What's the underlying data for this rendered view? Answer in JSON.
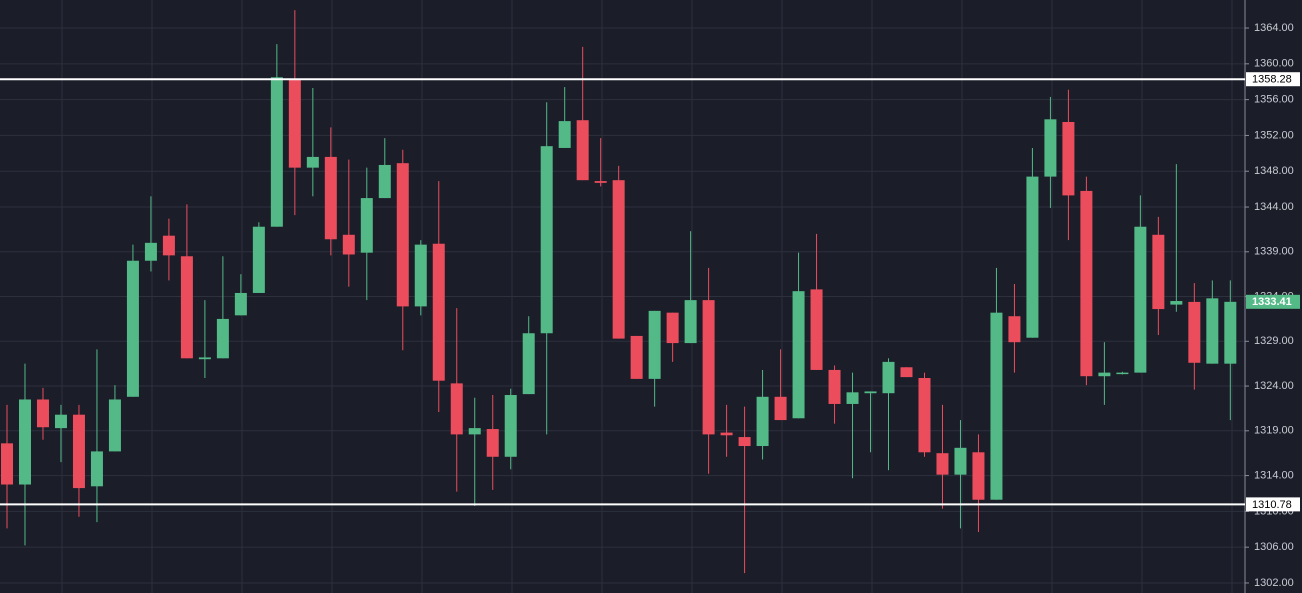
{
  "chart_data": {
    "type": "candlestick",
    "open": [
      1317.6,
      1313.0,
      1322.5,
      1319.3,
      1320.8,
      1312.8,
      1316.7,
      1322.8,
      1338.0,
      1340.8,
      1338.5,
      1327.0,
      1327.1,
      1331.9,
      1334.4,
      1341.8,
      1358.3,
      1348.4,
      1349.6,
      1340.9,
      1338.9,
      1345.0,
      1348.9,
      1332.9,
      1339.9,
      1324.3,
      1318.6,
      1319.2,
      1316.1,
      1323.1,
      1329.9,
      1350.6,
      1353.7,
      1346.9,
      1347.0,
      1329.6,
      1324.8,
      1332.2,
      1328.8,
      1333.6,
      1318.8,
      1318.3,
      1317.3,
      1322.8,
      1320.4,
      1334.8,
      1325.8,
      1322.0,
      1323.2,
      1323.2,
      1326.1,
      1324.9,
      1316.5,
      1314.1,
      1316.6,
      1311.3,
      1331.8,
      1329.4,
      1347.4,
      1353.5,
      1345.8,
      1325.1,
      1325.4,
      1325.5,
      1340.9,
      1333.1,
      1333.4,
      1326.5,
      1326.5
    ],
    "high": [
      1321.9,
      1326.5,
      1323.8,
      1321.9,
      1321.9,
      1328.1,
      1324.1,
      1339.8,
      1345.2,
      1342.7,
      1344.3,
      1333.6,
      1338.5,
      1336.5,
      1342.3,
      1362.2,
      1366.0,
      1357.3,
      1352.9,
      1349.3,
      1348.4,
      1351.7,
      1350.4,
      1340.3,
      1346.9,
      1332.7,
      1322.7,
      1323.0,
      1323.7,
      1331.8,
      1355.7,
      1357.4,
      1361.9,
      1351.7,
      1348.6,
      1329.6,
      1332.4,
      1332.2,
      1341.3,
      1337.2,
      1321.9,
      1321.7,
      1325.8,
      1328.1,
      1338.9,
      1341.0,
      1326.3,
      1325.5,
      1323.4,
      1327.1,
      1326.1,
      1325.5,
      1321.9,
      1320.2,
      1318.6,
      1337.2,
      1335.4,
      1350.6,
      1356.3,
      1357.1,
      1347.4,
      1328.9,
      1325.6,
      1345.3,
      1342.9,
      1348.8,
      1335.5,
      1335.8,
      1335.8
    ],
    "low": [
      1308.1,
      1306.2,
      1318.0,
      1315.5,
      1309.4,
      1308.8,
      1316.7,
      1322.8,
      1336.8,
      1335.8,
      1327.1,
      1324.9,
      1327.1,
      1331.9,
      1334.4,
      1341.8,
      1343.1,
      1345.2,
      1338.6,
      1335.1,
      1333.6,
      1345.0,
      1328.0,
      1331.9,
      1321.1,
      1312.2,
      1310.6,
      1312.4,
      1314.7,
      1323.1,
      1318.6,
      1350.6,
      1347.0,
      1346.3,
      1329.3,
      1324.8,
      1321.7,
      1326.7,
      1328.8,
      1314.2,
      1316.1,
      1303.1,
      1315.8,
      1320.2,
      1320.4,
      1325.8,
      1319.8,
      1313.7,
      1316.6,
      1314.6,
      1325.0,
      1316.1,
      1310.3,
      1308.1,
      1307.7,
      1311.3,
      1325.5,
      1329.4,
      1343.9,
      1340.3,
      1324.1,
      1321.9,
      1325.3,
      1325.5,
      1329.7,
      1332.3,
      1323.6,
      1326.5,
      1320.2
    ],
    "close": [
      1313.0,
      1322.5,
      1319.4,
      1320.8,
      1312.6,
      1316.7,
      1322.5,
      1338.0,
      1340.0,
      1338.6,
      1327.1,
      1327.2,
      1331.5,
      1334.4,
      1341.8,
      1358.5,
      1348.4,
      1349.6,
      1340.4,
      1338.7,
      1345.0,
      1348.7,
      1332.9,
      1339.8,
      1324.6,
      1318.6,
      1319.3,
      1316.1,
      1323.0,
      1329.9,
      1350.8,
      1353.6,
      1347.0,
      1346.7,
      1329.3,
      1324.8,
      1332.4,
      1328.8,
      1333.6,
      1318.6,
      1318.5,
      1317.3,
      1322.8,
      1320.2,
      1334.6,
      1325.8,
      1322.0,
      1323.3,
      1323.4,
      1326.7,
      1325.0,
      1316.6,
      1314.1,
      1317.1,
      1311.3,
      1332.2,
      1328.9,
      1347.4,
      1353.8,
      1345.3,
      1325.1,
      1325.5,
      1325.5,
      1341.8,
      1332.6,
      1333.5,
      1326.6,
      1333.8,
      1333.41
    ],
    "up_color": "#53b987",
    "down_color": "#eb4d5c",
    "ylim": [
      1300.88,
      1367.13
    ],
    "yticks": [
      {
        "value": 1364,
        "label": "1364.00"
      },
      {
        "value": 1360,
        "label": "1360.00"
      },
      {
        "value": 1356,
        "label": "1356.00"
      },
      {
        "value": 1352,
        "label": "1352.00"
      },
      {
        "value": 1348,
        "label": "1348.00"
      },
      {
        "value": 1344,
        "label": "1344.00"
      },
      {
        "value": 1339,
        "label": "1339.00"
      },
      {
        "value": 1334,
        "label": "1334.00"
      },
      {
        "value": 1329,
        "label": "1329.00"
      },
      {
        "value": 1324,
        "label": "1324.00"
      },
      {
        "value": 1319,
        "label": "1319.00"
      },
      {
        "value": 1314,
        "label": "1314.00"
      },
      {
        "value": 1310,
        "label": "1310.00"
      },
      {
        "value": 1306,
        "label": "1306.00"
      },
      {
        "value": 1302,
        "label": "1302.00"
      }
    ],
    "grid": true,
    "levels": [
      1358.28,
      1310.78
    ],
    "level_color": "#ffffff"
  }
}
